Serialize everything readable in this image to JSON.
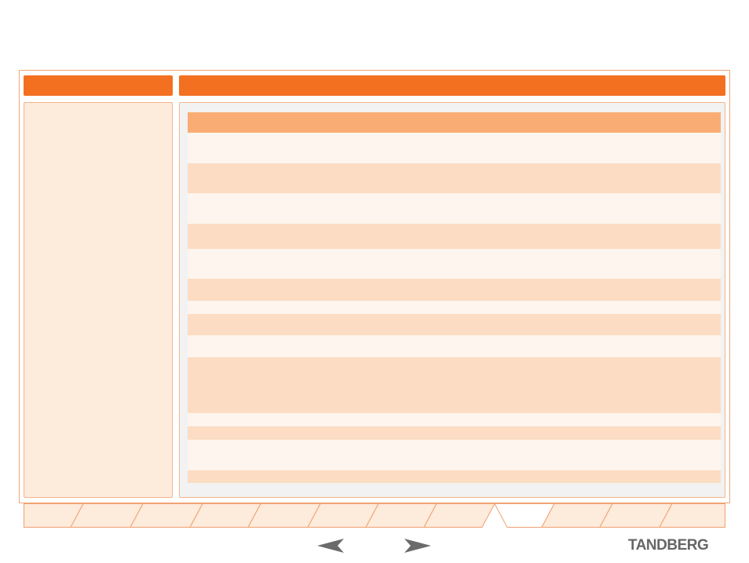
{
  "brand": {
    "logo_text": "TANDBERG",
    "accent_color": "#f37021",
    "header_color": "#f9ad74",
    "row_dark_color": "#fcdcc2",
    "row_light_color": "#fdf5ee",
    "sidebar_color": "#fdebdc"
  },
  "navigation": {
    "previous_icon": "left-arrow-icon",
    "next_icon": "right-arrow-icon",
    "tab_count": 12,
    "active_tab_index": 8
  }
}
